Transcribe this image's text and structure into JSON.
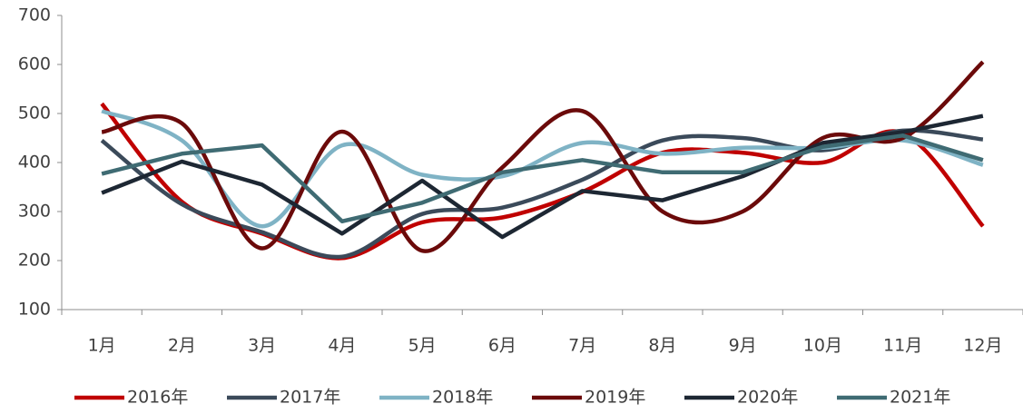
{
  "chart_data": {
    "type": "line",
    "categories": [
      "1月",
      "2月",
      "3月",
      "4月",
      "5月",
      "6月",
      "7月",
      "8月",
      "9月",
      "10月",
      "11月",
      "12月"
    ],
    "ylim": [
      100,
      700
    ],
    "yticks": [
      100,
      200,
      300,
      400,
      500,
      600,
      700
    ],
    "grid": false,
    "legend": "bottom",
    "series": [
      {
        "name": "2016年",
        "color": "#c00000",
        "smooth": true,
        "values": [
          520,
          320,
          255,
          205,
          278,
          288,
          340,
          420,
          420,
          400,
          460,
          270
        ]
      },
      {
        "name": "2017年",
        "color": "#3b4a5a",
        "smooth": true,
        "values": [
          445,
          315,
          258,
          208,
          295,
          308,
          365,
          445,
          450,
          425,
          465,
          447
        ]
      },
      {
        "name": "2018年",
        "color": "#7fb3c5",
        "smooth": true,
        "values": [
          505,
          445,
          270,
          435,
          375,
          372,
          440,
          418,
          430,
          430,
          445,
          395
        ]
      },
      {
        "name": "2019年",
        "color": "#6b0a0a",
        "smooth": true,
        "values": [
          462,
          480,
          225,
          463,
          220,
          390,
          505,
          300,
          300,
          450,
          450,
          605
        ]
      },
      {
        "name": "2020年",
        "color": "#1d2733",
        "smooth": false,
        "values": [
          338,
          402,
          355,
          255,
          363,
          248,
          342,
          323,
          372,
          440,
          462,
          495
        ]
      },
      {
        "name": "2021年",
        "color": "#3f6b73",
        "smooth": false,
        "values": [
          377,
          418,
          435,
          280,
          318,
          380,
          405,
          380,
          380,
          432,
          455,
          405
        ]
      }
    ]
  }
}
